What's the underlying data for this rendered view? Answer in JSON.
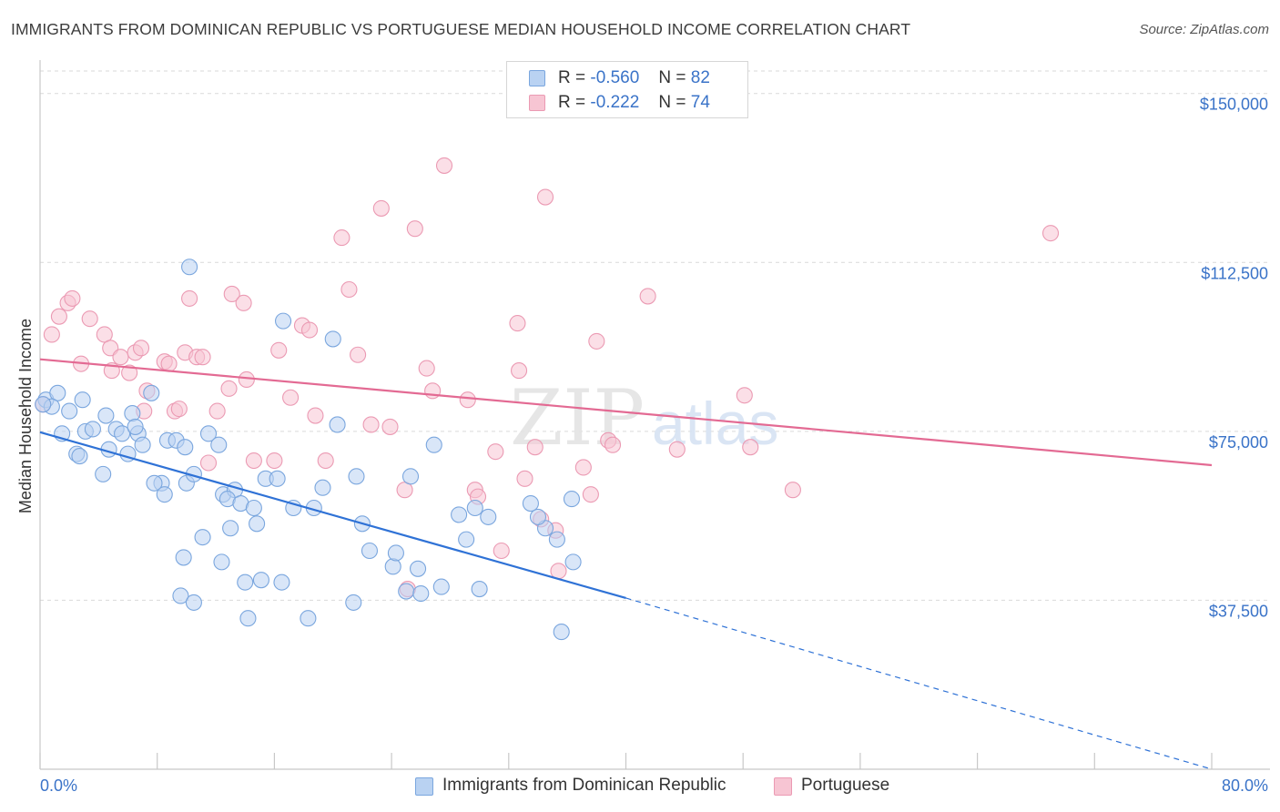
{
  "title": "IMMIGRANTS FROM DOMINICAN REPUBLIC VS PORTUGUESE MEDIAN HOUSEHOLD INCOME CORRELATION CHART",
  "source": "Source: ZipAtlas.com",
  "watermark": {
    "part1": "ZIP",
    "part2": "atlas"
  },
  "legend": {
    "rows": [
      {
        "r_label": "R =",
        "r_value": "-0.560",
        "n_label": "N =",
        "n_value": "82"
      },
      {
        "r_label": "R =",
        "r_value": "-0.222",
        "n_label": "N =",
        "n_value": "74"
      }
    ]
  },
  "colors": {
    "blue_fill": "#b9d2f2",
    "blue_stroke": "#7aa6de",
    "blue_line": "#2f72d6",
    "pink_fill": "#f7c5d3",
    "pink_stroke": "#eb9ab3",
    "pink_line": "#e36a93",
    "tick_text": "#3a73c8",
    "grid": "#d9d9d9"
  },
  "chart_data": {
    "type": "scatter",
    "title": "IMMIGRANTS FROM DOMINICAN REPUBLIC VS PORTUGUESE MEDIAN HOUSEHOLD INCOME CORRELATION CHART",
    "xlabel": "",
    "ylabel": "Median Household Income",
    "xlim": [
      0,
      80
    ],
    "ylim": [
      0,
      155000
    ],
    "x_tick_labels": [
      "0.0%",
      "80.0%"
    ],
    "y_ticks": [
      37500,
      75000,
      112500,
      150000
    ],
    "y_tick_labels": [
      "$37,500",
      "$75,000",
      "$112,500",
      "$150,000"
    ],
    "grid": true,
    "legend_position": "top-center",
    "series": [
      {
        "name": "Immigrants from Dominican Republic",
        "color": "#b9d2f2",
        "trend": {
          "x": [
            0,
            40
          ],
          "y": [
            74800,
            38000
          ],
          "dashed_to": [
            80,
            0
          ]
        },
        "points": [
          [
            0.4,
            82000
          ],
          [
            1.2,
            83500
          ],
          [
            0.8,
            80500
          ],
          [
            1.5,
            74500
          ],
          [
            2.0,
            79500
          ],
          [
            2.5,
            70000
          ],
          [
            2.7,
            69500
          ],
          [
            3.1,
            75000
          ],
          [
            3.6,
            75500
          ],
          [
            4.5,
            78500
          ],
          [
            4.7,
            71000
          ],
          [
            5.2,
            75500
          ],
          [
            5.6,
            74500
          ],
          [
            6.0,
            70000
          ],
          [
            6.7,
            74500
          ],
          [
            7.0,
            72000
          ],
          [
            4.3,
            65500
          ],
          [
            7.6,
            83500
          ],
          [
            8.7,
            73000
          ],
          [
            9.3,
            73000
          ],
          [
            9.9,
            71500
          ],
          [
            8.3,
            63500
          ],
          [
            6.3,
            79000
          ],
          [
            6.5,
            76000
          ],
          [
            7.8,
            63500
          ],
          [
            10.0,
            63500
          ],
          [
            11.5,
            74500
          ],
          [
            12.2,
            72000
          ],
          [
            10.5,
            65500
          ],
          [
            8.5,
            61000
          ],
          [
            11.1,
            51500
          ],
          [
            12.5,
            61000
          ],
          [
            13.3,
            62000
          ],
          [
            12.8,
            60000
          ],
          [
            13.7,
            59000
          ],
          [
            13.0,
            53500
          ],
          [
            14.6,
            58000
          ],
          [
            15.4,
            64500
          ],
          [
            14.8,
            54500
          ],
          [
            16.2,
            64500
          ],
          [
            17.3,
            58000
          ],
          [
            18.7,
            58000
          ],
          [
            19.3,
            62500
          ],
          [
            20.0,
            95500
          ],
          [
            20.3,
            76500
          ],
          [
            21.6,
            65000
          ],
          [
            22.0,
            54500
          ],
          [
            22.5,
            48500
          ],
          [
            25.3,
            65000
          ],
          [
            26.9,
            72000
          ],
          [
            28.6,
            56500
          ],
          [
            29.1,
            51000
          ],
          [
            29.7,
            58000
          ],
          [
            30.6,
            56000
          ],
          [
            33.5,
            59000
          ],
          [
            34.5,
            53500
          ],
          [
            35.3,
            51000
          ],
          [
            36.4,
            46000
          ],
          [
            10.2,
            111500
          ],
          [
            16.6,
            99500
          ],
          [
            9.8,
            47000
          ],
          [
            12.4,
            46000
          ],
          [
            14.0,
            41500
          ],
          [
            16.5,
            41500
          ],
          [
            15.1,
            42000
          ],
          [
            9.6,
            38500
          ],
          [
            10.5,
            37000
          ],
          [
            14.2,
            33500
          ],
          [
            18.3,
            33500
          ],
          [
            21.4,
            37000
          ],
          [
            24.1,
            45000
          ],
          [
            24.3,
            48000
          ],
          [
            25.8,
            44500
          ],
          [
            27.4,
            40500
          ],
          [
            30.0,
            40000
          ],
          [
            25.0,
            39500
          ],
          [
            26.0,
            39000
          ],
          [
            36.3,
            60000
          ],
          [
            35.6,
            30500
          ],
          [
            34.0,
            56000
          ],
          [
            2.9,
            82000
          ],
          [
            0.2,
            81000
          ]
        ]
      },
      {
        "name": "Portuguese",
        "color": "#f7c5d3",
        "trend": {
          "x": [
            0,
            80
          ],
          "y": [
            91000,
            67500
          ]
        },
        "points": [
          [
            0.2,
            81000
          ],
          [
            0.8,
            96500
          ],
          [
            1.3,
            100500
          ],
          [
            1.9,
            103500
          ],
          [
            2.2,
            104500
          ],
          [
            2.8,
            90000
          ],
          [
            3.4,
            100000
          ],
          [
            4.4,
            96500
          ],
          [
            4.8,
            93500
          ],
          [
            4.9,
            88500
          ],
          [
            5.5,
            91500
          ],
          [
            6.1,
            88000
          ],
          [
            6.5,
            92500
          ],
          [
            6.9,
            93500
          ],
          [
            7.1,
            79500
          ],
          [
            7.3,
            84000
          ],
          [
            8.5,
            90500
          ],
          [
            8.8,
            90000
          ],
          [
            9.2,
            79500
          ],
          [
            9.5,
            80000
          ],
          [
            9.9,
            92500
          ],
          [
            10.2,
            104500
          ],
          [
            10.7,
            91500
          ],
          [
            11.1,
            91500
          ],
          [
            11.5,
            68000
          ],
          [
            12.1,
            79500
          ],
          [
            12.9,
            84500
          ],
          [
            13.1,
            105500
          ],
          [
            13.9,
            103500
          ],
          [
            14.1,
            86500
          ],
          [
            14.6,
            68500
          ],
          [
            16.3,
            93000
          ],
          [
            16.0,
            68500
          ],
          [
            17.1,
            82500
          ],
          [
            17.9,
            98500
          ],
          [
            18.4,
            97500
          ],
          [
            18.8,
            78500
          ],
          [
            19.5,
            68500
          ],
          [
            20.6,
            118000
          ],
          [
            21.1,
            106500
          ],
          [
            21.7,
            92000
          ],
          [
            22.6,
            76500
          ],
          [
            23.3,
            124500
          ],
          [
            23.9,
            76000
          ],
          [
            24.9,
            62000
          ],
          [
            25.1,
            40000
          ],
          [
            25.6,
            120000
          ],
          [
            26.4,
            89000
          ],
          [
            26.8,
            84000
          ],
          [
            27.6,
            134000
          ],
          [
            29.2,
            82000
          ],
          [
            29.7,
            62000
          ],
          [
            29.9,
            60500
          ],
          [
            31.1,
            70500
          ],
          [
            31.5,
            48500
          ],
          [
            32.6,
            99000
          ],
          [
            32.7,
            88500
          ],
          [
            33.1,
            64500
          ],
          [
            33.8,
            71500
          ],
          [
            34.2,
            55500
          ],
          [
            35.2,
            53000
          ],
          [
            35.4,
            44000
          ],
          [
            34.5,
            127000
          ],
          [
            37.1,
            67000
          ],
          [
            37.6,
            61000
          ],
          [
            38.0,
            95000
          ],
          [
            38.8,
            73000
          ],
          [
            39.1,
            72000
          ],
          [
            41.5,
            105000
          ],
          [
            43.5,
            71000
          ],
          [
            48.1,
            83000
          ],
          [
            48.5,
            71500
          ],
          [
            51.4,
            62000
          ],
          [
            69.0,
            119000
          ]
        ]
      }
    ]
  }
}
